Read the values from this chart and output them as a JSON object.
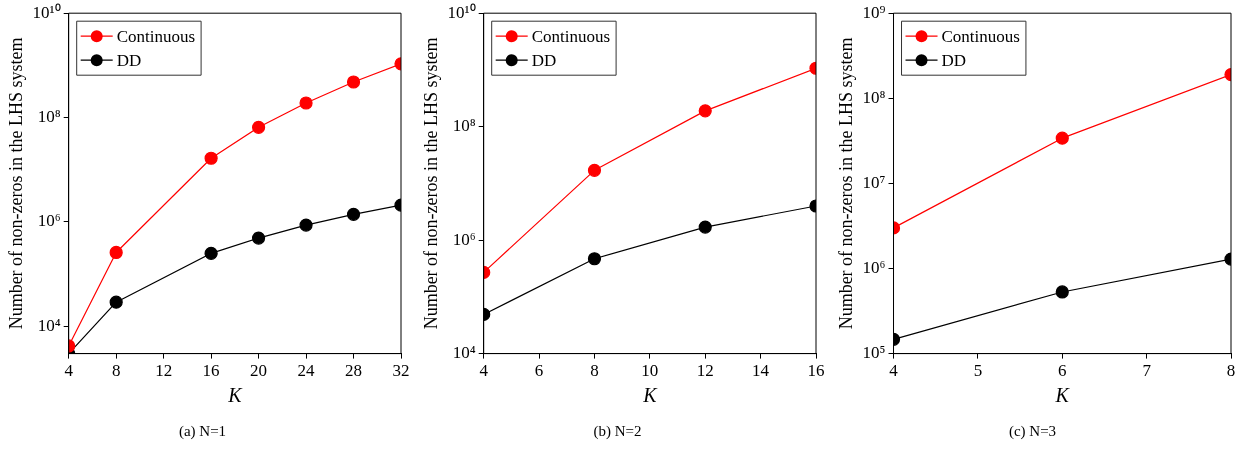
{
  "chart_data": [
    {
      "type": "line",
      "title": "(a) N=1",
      "xlabel": "K",
      "ylabel": "Number of non-zeros in the LHS system",
      "x": [
        4,
        8,
        16,
        20,
        24,
        28,
        32
      ],
      "series": [
        {
          "name": "Continuous",
          "color": "#ff0000",
          "values": [
            4200,
            260000,
            16600000,
            65000000,
            190000000,
            480000000,
            1070000000
          ]
        },
        {
          "name": "DD",
          "color": "#000000",
          "values": [
            3000,
            29000,
            250000,
            490000,
            870000,
            1400000,
            2100000
          ]
        }
      ],
      "xlim": [
        4,
        32
      ],
      "xticks": [
        4,
        8,
        12,
        16,
        20,
        24,
        28,
        32
      ],
      "ylim": [
        3000,
        10000000000
      ],
      "yticks": [
        {
          "value": 10000,
          "label": "10⁴"
        },
        {
          "value": 1000000,
          "label": "10⁶"
        },
        {
          "value": 100000000,
          "label": "10⁸"
        },
        {
          "value": 10000000000,
          "label": "10¹⁰"
        }
      ],
      "log": "y",
      "grid": false,
      "legend": "top left",
      "marker": "circle",
      "line_style": "solid"
    },
    {
      "type": "line",
      "title": "(b) N=2",
      "xlabel": "K",
      "ylabel": "Number of non-zeros in the LHS system",
      "x": [
        4,
        8,
        12,
        16
      ],
      "series": [
        {
          "name": "Continuous",
          "color": "#ff0000",
          "values": [
            270000,
            17000000,
            190000000,
            1070000000
          ]
        },
        {
          "name": "DD",
          "color": "#000000",
          "values": [
            49000,
            470000,
            1700000,
            4000000
          ]
        }
      ],
      "xlim": [
        4,
        16
      ],
      "xticks": [
        4,
        6,
        8,
        10,
        12,
        14,
        16
      ],
      "ylim": [
        10000,
        10000000000
      ],
      "yticks": [
        {
          "value": 10000,
          "label": "10⁴"
        },
        {
          "value": 1000000,
          "label": "10⁶"
        },
        {
          "value": 100000000,
          "label": "10⁸"
        },
        {
          "value": 10000000000,
          "label": "10¹⁰"
        }
      ],
      "log": "y",
      "grid": false,
      "legend": "top left",
      "marker": "circle",
      "line_style": "solid"
    },
    {
      "type": "line",
      "title": "(c) N=3",
      "xlabel": "K",
      "ylabel": "Number of non-zeros in the LHS system",
      "x": [
        4,
        6,
        8
      ],
      "series": [
        {
          "name": "Continuous",
          "color": "#ff0000",
          "values": [
            3000000,
            34000000,
            190000000
          ]
        },
        {
          "name": "DD",
          "color": "#000000",
          "values": [
            147000,
            530000,
            1290000
          ]
        }
      ],
      "xlim": [
        4,
        8
      ],
      "xticks": [
        4,
        5,
        6,
        7,
        8
      ],
      "ylim": [
        100000,
        1000000000
      ],
      "yticks": [
        {
          "value": 100000,
          "label": "10⁵"
        },
        {
          "value": 1000000,
          "label": "10⁶"
        },
        {
          "value": 10000000,
          "label": "10⁷"
        },
        {
          "value": 100000000,
          "label": "10⁸"
        },
        {
          "value": 1000000000,
          "label": "10⁹"
        }
      ],
      "log": "y",
      "grid": false,
      "legend": "top left",
      "marker": "circle",
      "line_style": "solid"
    }
  ]
}
